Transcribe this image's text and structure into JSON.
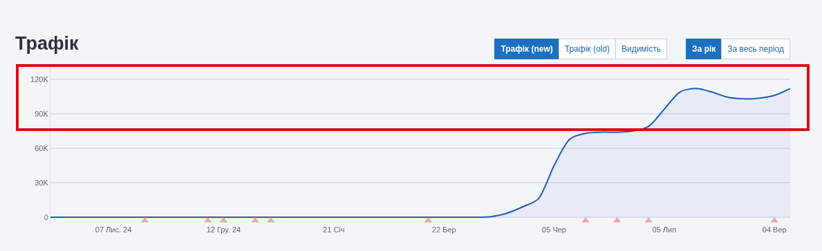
{
  "chart_data": {
    "type": "area",
    "title": "Трафік",
    "annotations": [
      "Трафік (new)",
      "Трафік (old)",
      "Видимість",
      "За рік",
      "За весь період"
    ],
    "categories": [
      null,
      null,
      null,
      null,
      "07 Лис. 24",
      null,
      null,
      null,
      null,
      null,
      null,
      "12 Гру. 24",
      null,
      null,
      null,
      null,
      null,
      null,
      "21 Січ",
      null,
      null,
      null,
      null,
      null,
      null,
      "22 Бер",
      null,
      null,
      null,
      null,
      null,
      null,
      "05 Чер",
      null,
      null,
      null,
      null,
      null,
      null,
      "05 Лип",
      null,
      null,
      null,
      null,
      null,
      null,
      "04 Вер",
      null
    ],
    "series": [
      {
        "color": "#1a5bbf",
        "values": [
          0,
          0,
          0,
          0,
          0,
          0,
          0,
          0,
          0,
          0,
          0,
          0,
          0,
          0,
          0,
          0,
          0,
          0,
          0,
          0,
          0,
          0,
          0,
          0,
          0,
          0,
          0,
          0,
          500,
          3500,
          9000,
          16000,
          45000,
          68000,
          73000,
          74000,
          74000,
          75000,
          79000,
          94000,
          109000,
          112000,
          109000,
          104500,
          103000,
          103500,
          106000,
          112000
        ]
      },
      {
        "type": "scatter",
        "color": "#e8a9ae",
        "marker": "triangle",
        "values": [
          null,
          null,
          null,
          null,
          null,
          null,
          -3000,
          null,
          null,
          null,
          -3000,
          -3000,
          null,
          -3000,
          -3000,
          null,
          null,
          null,
          null,
          null,
          null,
          null,
          null,
          null,
          -3000,
          null,
          null,
          null,
          null,
          null,
          null,
          null,
          null,
          null,
          -3000,
          null,
          -3000,
          null,
          -3000,
          null,
          null,
          null,
          null,
          null,
          null,
          null,
          -3000,
          null
        ]
      }
    ],
    "ylim": [
      -6000,
      132000
    ],
    "yticks": [
      {
        "value": 0,
        "label": "0"
      },
      {
        "value": 30000,
        "label": "30K"
      },
      {
        "value": 60000,
        "label": "60K"
      },
      {
        "value": 90000,
        "label": "90K"
      },
      {
        "value": 120000,
        "label": "120K"
      }
    ],
    "grid": "y"
  }
}
